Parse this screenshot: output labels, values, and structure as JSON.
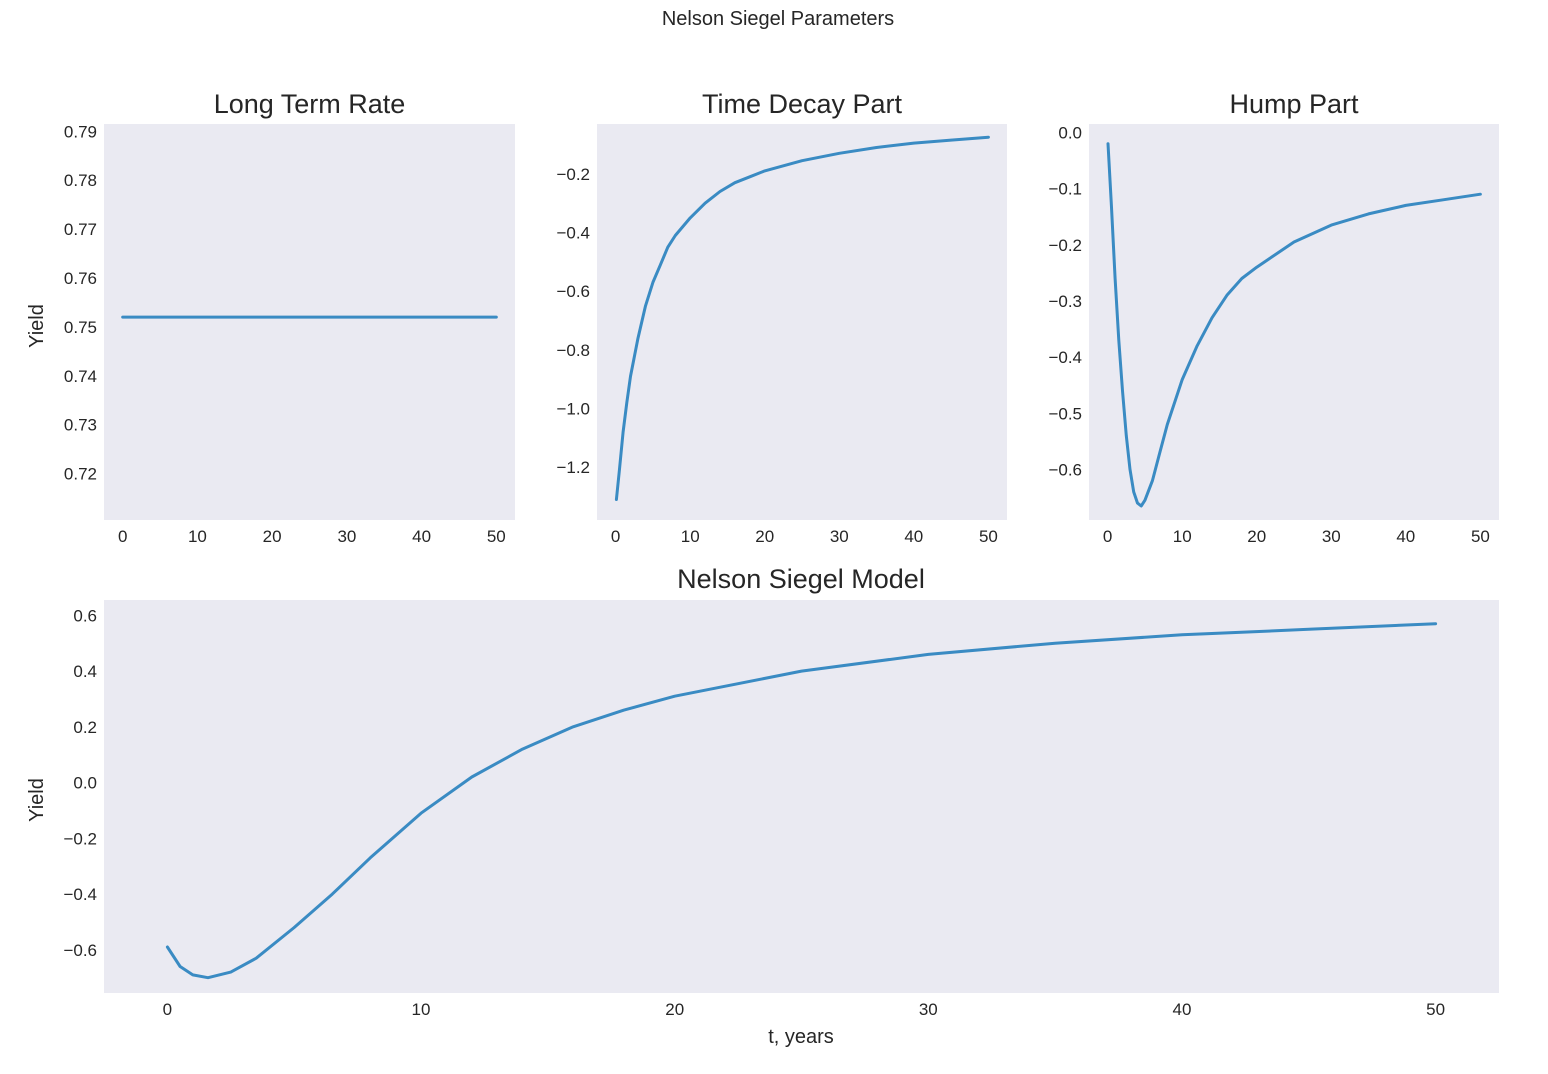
{
  "figure": {
    "suptitle": "Nelson Siegel Parameters",
    "background": "#ffffff",
    "axes_facecolor": "#eaeaf2",
    "text_color": "#262626",
    "line_color": "#3a8bc3"
  },
  "chart_data": [
    {
      "type": "line",
      "title": "Long Term Rate",
      "xlabel": "",
      "ylabel": "Yield",
      "xlim": [
        -2.5,
        52.5
      ],
      "ylim": [
        0.7105,
        0.7915
      ],
      "xticks": [
        0,
        10,
        20,
        30,
        40,
        50
      ],
      "yticks": [
        0.72,
        0.73,
        0.74,
        0.75,
        0.76,
        0.77,
        0.78,
        0.79
      ],
      "ytick_labels": [
        "0.72",
        "0.73",
        "0.74",
        "0.75",
        "0.76",
        "0.77",
        "0.78",
        "0.79"
      ],
      "grid": false,
      "x": [
        0,
        50
      ],
      "y": [
        0.752,
        0.752
      ]
    },
    {
      "type": "line",
      "title": "Time Decay Part",
      "xlabel": "",
      "ylabel": "",
      "xlim": [
        -2.5,
        52.5
      ],
      "ylim": [
        -1.38,
        -0.03
      ],
      "xticks": [
        0,
        10,
        20,
        30,
        40,
        50
      ],
      "yticks": [
        -1.2,
        -1.0,
        -0.8,
        -0.6,
        -0.4,
        -0.2
      ],
      "ytick_labels": [
        "−1.2",
        "−1.0",
        "−0.8",
        "−0.6",
        "−0.4",
        "−0.2"
      ],
      "grid": false,
      "x": [
        0.1,
        0.5,
        1,
        1.5,
        2,
        3,
        4,
        5,
        6,
        7,
        8,
        10,
        12,
        14,
        16,
        18,
        20,
        25,
        30,
        35,
        40,
        45,
        50
      ],
      "y": [
        -1.31,
        -1.21,
        -1.08,
        -0.98,
        -0.89,
        -0.76,
        -0.65,
        -0.57,
        -0.51,
        -0.45,
        -0.41,
        -0.35,
        -0.3,
        -0.26,
        -0.23,
        -0.21,
        -0.19,
        -0.155,
        -0.13,
        -0.11,
        -0.095,
        -0.085,
        -0.075
      ]
    },
    {
      "type": "line",
      "title": "Hump Part",
      "xlabel": "",
      "ylabel": "",
      "xlim": [
        -2.5,
        52.5
      ],
      "ylim": [
        -0.69,
        0.015
      ],
      "xticks": [
        0,
        10,
        20,
        30,
        40,
        50
      ],
      "yticks": [
        -0.6,
        -0.5,
        -0.4,
        -0.3,
        -0.2,
        -0.1,
        0.0
      ],
      "ytick_labels": [
        "−0.6",
        "−0.5",
        "−0.4",
        "−0.3",
        "−0.2",
        "−0.1",
        "0.0"
      ],
      "grid": false,
      "x": [
        0.05,
        0.5,
        1,
        1.5,
        2,
        2.5,
        3,
        3.5,
        4,
        4.5,
        5,
        6,
        7,
        8,
        10,
        12,
        14,
        16,
        18,
        20,
        25,
        30,
        35,
        40,
        45,
        50
      ],
      "y": [
        -0.02,
        -0.13,
        -0.26,
        -0.37,
        -0.46,
        -0.54,
        -0.6,
        -0.64,
        -0.66,
        -0.665,
        -0.655,
        -0.62,
        -0.57,
        -0.52,
        -0.44,
        -0.38,
        -0.33,
        -0.29,
        -0.26,
        -0.24,
        -0.195,
        -0.165,
        -0.145,
        -0.13,
        -0.12,
        -0.11
      ]
    },
    {
      "type": "line",
      "title": "Nelson Siegel Model",
      "xlabel": "t, years",
      "ylabel": "Yield",
      "xlim": [
        -2.5,
        52.5
      ],
      "ylim": [
        -0.755,
        0.655
      ],
      "xticks": [
        0,
        10,
        20,
        30,
        40,
        50
      ],
      "yticks": [
        -0.6,
        -0.4,
        -0.2,
        0.0,
        0.2,
        0.4,
        0.6
      ],
      "ytick_labels": [
        "−0.6",
        "−0.4",
        "−0.2",
        "0.0",
        "0.2",
        "0.4",
        "0.6"
      ],
      "grid": false,
      "x": [
        0,
        0.5,
        1,
        1.6,
        2.5,
        3.5,
        5,
        6.5,
        8,
        10,
        12,
        14,
        16,
        18,
        20,
        25,
        30,
        35,
        40,
        45,
        50
      ],
      "y": [
        -0.59,
        -0.66,
        -0.69,
        -0.7,
        -0.68,
        -0.63,
        -0.52,
        -0.4,
        -0.27,
        -0.11,
        0.02,
        0.12,
        0.2,
        0.26,
        0.31,
        0.4,
        0.46,
        0.5,
        0.53,
        0.55,
        0.57
      ]
    }
  ]
}
